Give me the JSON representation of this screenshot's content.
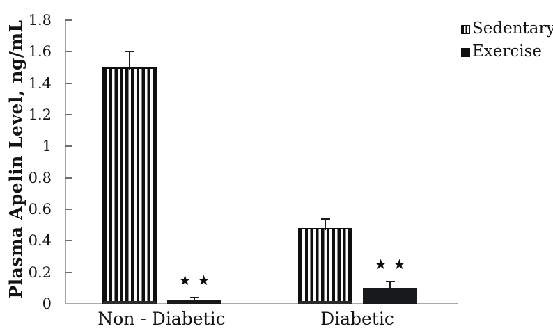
{
  "chart_data": {
    "type": "bar",
    "title": "",
    "xlabel": "",
    "ylabel": "Plasma Apelin Level, ng/mL",
    "ylim": [
      0,
      1.8
    ],
    "grid": false,
    "error_bars": "upper",
    "yticks": [
      {
        "value": 0,
        "label": "0"
      },
      {
        "value": 0.2,
        "label": "0.2"
      },
      {
        "value": 0.4,
        "label": "0.4"
      },
      {
        "value": 0.6,
        "label": "0.6"
      },
      {
        "value": 0.8,
        "label": "0.8"
      },
      {
        "value": 1,
        "label": "1"
      },
      {
        "value": 1.2,
        "label": "1.2"
      },
      {
        "value": 1.4,
        "label": "1.4"
      },
      {
        "value": 1.6,
        "label": "1.6"
      },
      {
        "value": 1.8,
        "label": "1.8"
      }
    ],
    "categories": [
      "Non - Diabetic",
      "Diabetic"
    ],
    "series": [
      {
        "name": "Sedentary",
        "pattern": "vertical-stripes",
        "values": [
          1.5,
          0.48
        ],
        "errors": [
          0.1,
          0.06
        ]
      },
      {
        "name": "Exercise",
        "pattern": "solid-black",
        "values": [
          0.02,
          0.1
        ],
        "errors": [
          0.02,
          0.04
        ]
      }
    ],
    "annotations": [
      {
        "category_index": 0,
        "series_index": 1,
        "text": "★★"
      },
      {
        "category_index": 1,
        "series_index": 1,
        "text": "★★"
      }
    ],
    "legend": {
      "position": "top-right",
      "entries": [
        "Sedentary",
        "Exercise"
      ]
    },
    "colors": {
      "bar_black": "#0f0f0f",
      "axis_gray": "#a3a3a3",
      "text_black": "#131313",
      "background": "#ffffff"
    }
  }
}
